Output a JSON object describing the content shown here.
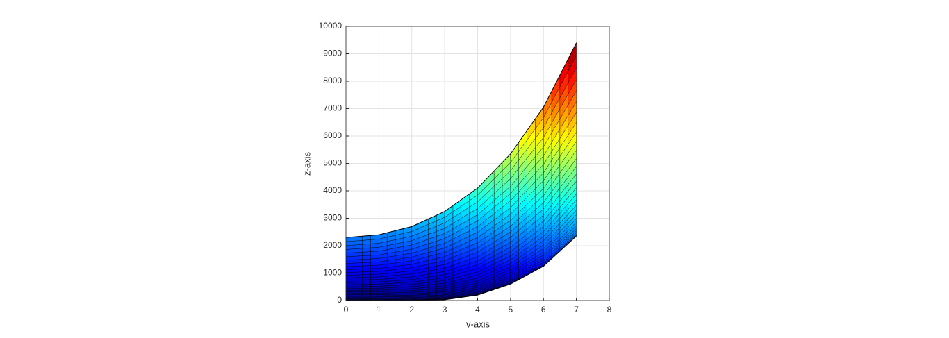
{
  "chart_data": {
    "type": "surface",
    "x_label": "v-axis",
    "y_label": "z-axis",
    "x": [
      0,
      1,
      2,
      3,
      4,
      5,
      6,
      7
    ],
    "top": [
      2300,
      2400,
      2700,
      3250,
      4100,
      5350,
      7050,
      9400
    ],
    "bottom": [
      0,
      0,
      0,
      30,
      200,
      600,
      1250,
      2350
    ],
    "colormap": "jet",
    "edge_color": "#000000",
    "xlim": [
      0,
      8
    ],
    "xticks": [
      0,
      1,
      2,
      3,
      4,
      5,
      6,
      7,
      8
    ],
    "ylim": [
      0,
      10000
    ],
    "yticks": [
      0,
      1000,
      2000,
      3000,
      4000,
      5000,
      6000,
      7000,
      8000,
      9000,
      10000
    ],
    "grid": true
  }
}
